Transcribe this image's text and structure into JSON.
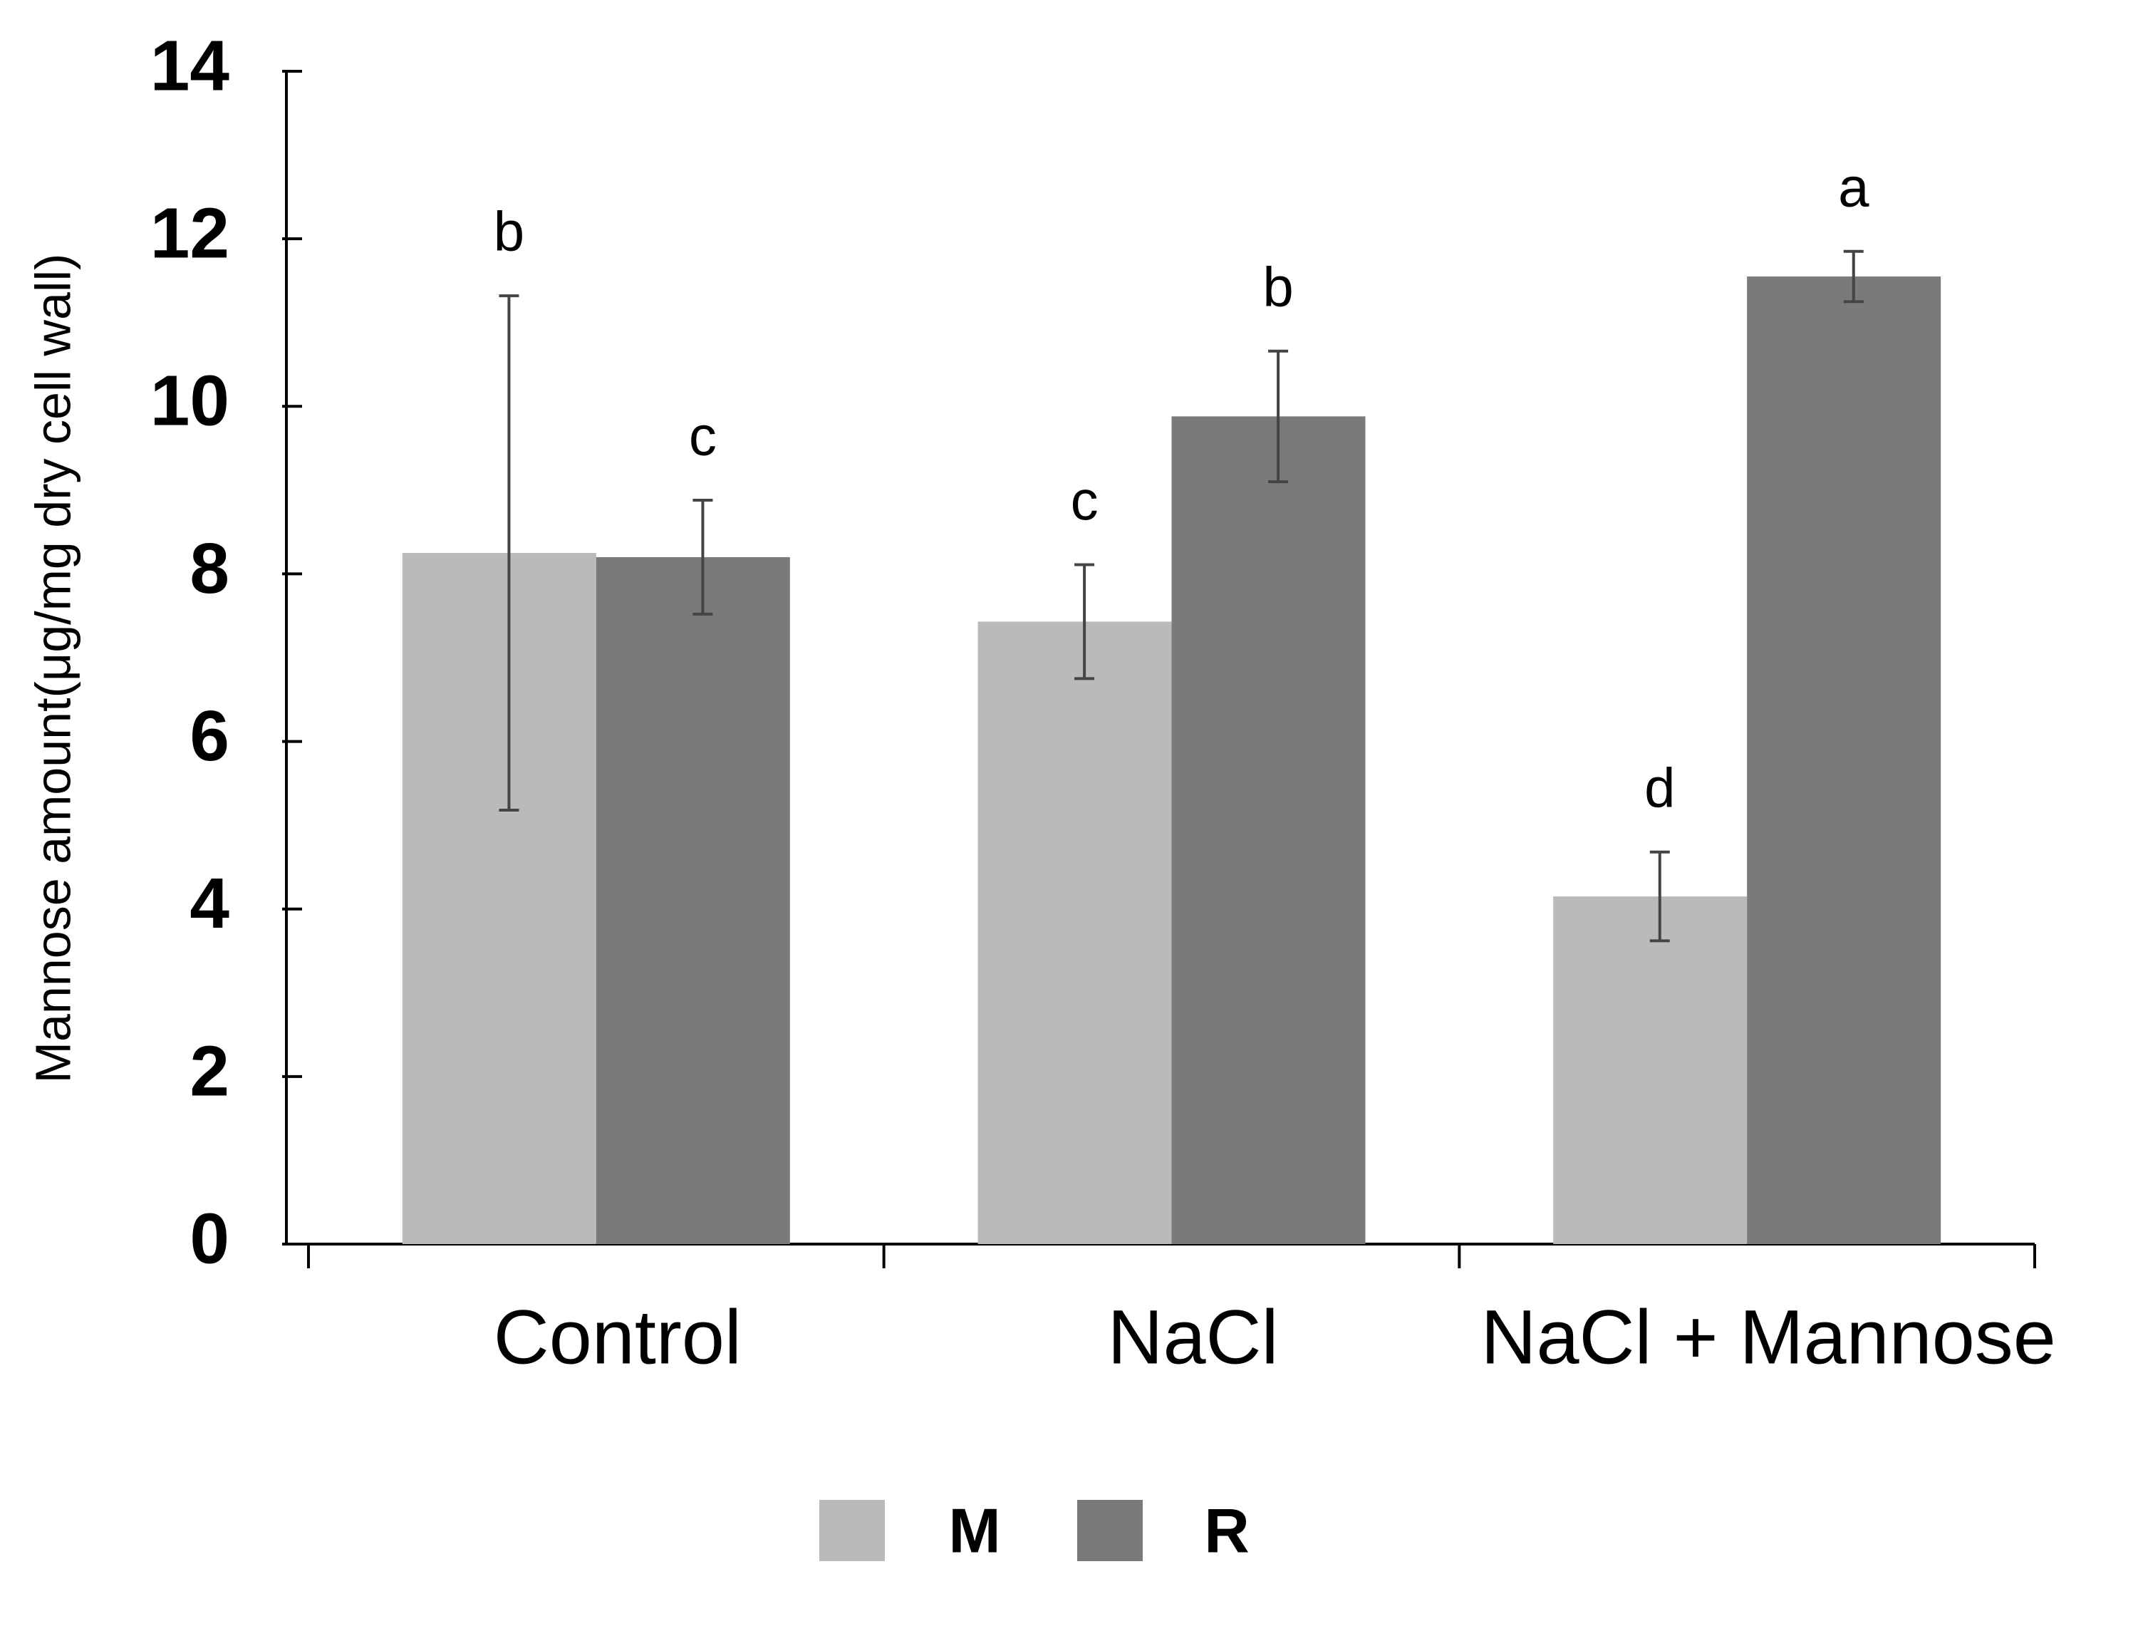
{
  "chart_data": {
    "type": "bar",
    "y_label": "Mannose amount(μg/mg dry cell wall)",
    "categories": [
      "Control",
      "NaCl",
      "NaCl + Mannose"
    ],
    "series": [
      {
        "name": "M",
        "color": "#bababa",
        "values": [
          8.25,
          7.43,
          4.15
        ],
        "errors": [
          3.07,
          0.68,
          0.53
        ],
        "letters": [
          "b",
          "c",
          "d"
        ]
      },
      {
        "name": "R",
        "color": "#7a7a7a",
        "values": [
          8.2,
          9.88,
          11.55
        ],
        "errors": [
          0.68,
          0.78,
          0.3
        ],
        "letters": [
          "c",
          "b",
          "a"
        ]
      }
    ],
    "ylim": [
      0,
      14
    ],
    "yticks": [
      0,
      2,
      4,
      6,
      8,
      10,
      12,
      14
    ],
    "grid": false,
    "legend": "bottom"
  }
}
